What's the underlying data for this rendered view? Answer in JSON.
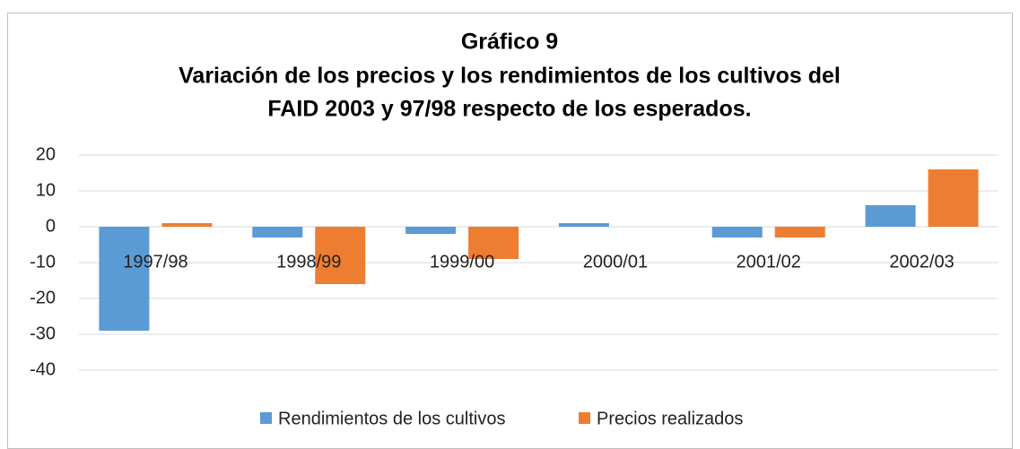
{
  "chart_data": {
    "type": "bar",
    "title": [
      "Gráfico 9",
      "Variación de los precios y los rendimientos de los cultivos del",
      "FAID 2003 y 97/98 respecto de los esperados."
    ],
    "categories": [
      "1997/98",
      "1998/99",
      "1999/00",
      "2000/01",
      "2001/02",
      "2002/03"
    ],
    "series": [
      {
        "name": "Rendimientos de los cultivos",
        "color": "#5b9bd5",
        "values": [
          -29,
          -3,
          -2,
          1,
          -3,
          6
        ]
      },
      {
        "name": "Precios realizados",
        "color": "#ed7d31",
        "values": [
          1,
          -16,
          -9,
          0,
          -3,
          16
        ]
      }
    ],
    "ylim": [
      -40,
      20
    ],
    "yticks": [
      -40,
      -30,
      -20,
      -10,
      0,
      10,
      20
    ],
    "grid": true,
    "legend": "bottom"
  }
}
